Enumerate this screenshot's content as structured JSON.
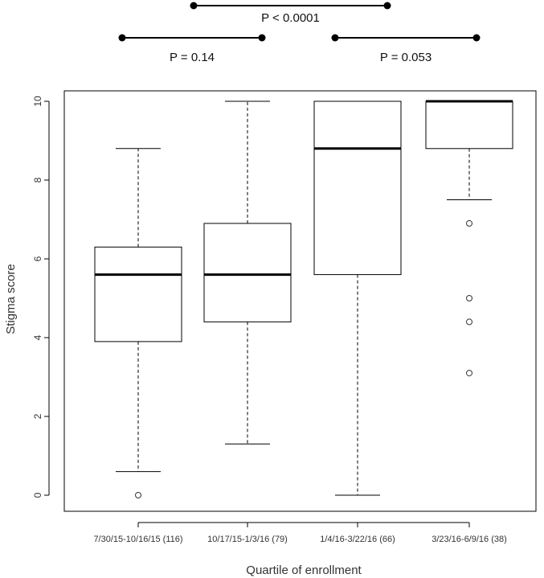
{
  "chart_data": {
    "type": "box",
    "title": "",
    "xlabel": "Quartile of enrollment",
    "ylabel": "Stigma score",
    "ylim": [
      0,
      10
    ],
    "yticks": [
      0,
      2,
      4,
      6,
      8,
      10
    ],
    "grid": false,
    "categories": [
      "7/30/15-10/16/15 (116)",
      "10/17/15-1/3/16 (79)",
      "1/4/16-3/22/16 (66)",
      "3/23/16-6/9/16 (38)"
    ],
    "boxes": [
      {
        "whisker_low": 0.6,
        "q1": 3.9,
        "median": 5.6,
        "q3": 6.3,
        "whisker_high": 8.8,
        "outliers": [
          0
        ]
      },
      {
        "whisker_low": 1.3,
        "q1": 4.4,
        "median": 5.6,
        "q3": 6.9,
        "whisker_high": 10,
        "outliers": []
      },
      {
        "whisker_low": 0,
        "q1": 5.6,
        "median": 8.8,
        "q3": 10,
        "whisker_high": 10,
        "outliers": []
      },
      {
        "whisker_low": 7.5,
        "q1": 8.8,
        "median": 10,
        "q3": 10,
        "whisker_high": 10,
        "outliers": [
          6.9,
          5.0,
          4.4,
          3.1
        ]
      }
    ],
    "comparisons": [
      {
        "from": 0,
        "to": 2,
        "label": "P < 0.0001"
      },
      {
        "from": 0,
        "to": 1,
        "label": "P = 0.14"
      },
      {
        "from": 2,
        "to": 3,
        "label": "P = 0.053"
      }
    ],
    "colors": {
      "box_fill": "#ffffff",
      "stroke": "#000000",
      "text": "#333333"
    }
  }
}
